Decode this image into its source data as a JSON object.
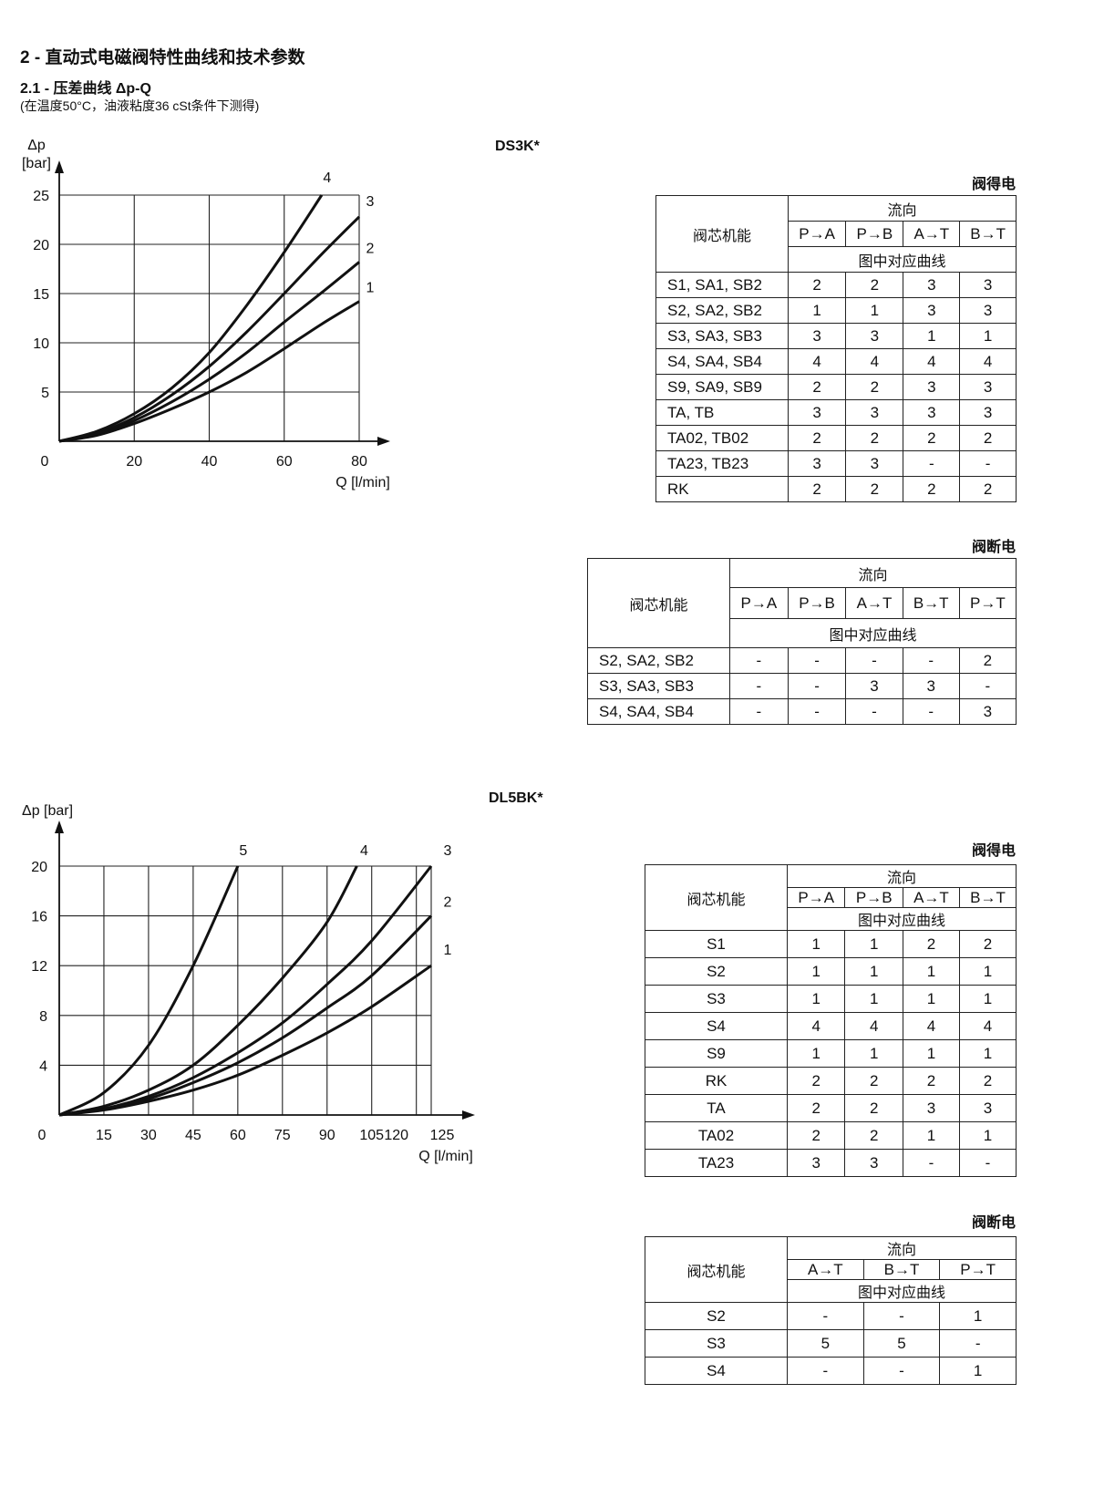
{
  "heading": {
    "section": "2 - 直动式电磁阀特性曲线和技术参数",
    "subsection": "2.1 - 压差曲线 Δp-Q",
    "conditions": "(在温度50°C，油液粘度36 cSt条件下测得)"
  },
  "ds3k": {
    "title": "DS3K*",
    "energized_label": "阀得电",
    "deenergized_label": "阀断电",
    "table_energized": {
      "spool_header": "阀芯机能",
      "flow_header": "流向",
      "curve_header": "图中对应曲线",
      "directions": [
        "P→A",
        "P→B",
        "A→T",
        "B→T"
      ],
      "rows": [
        {
          "spool": "S1, SA1, SB2",
          "values": [
            "2",
            "2",
            "3",
            "3"
          ]
        },
        {
          "spool": "S2, SA2, SB2",
          "values": [
            "1",
            "1",
            "3",
            "3"
          ]
        },
        {
          "spool": "S3, SA3, SB3",
          "values": [
            "3",
            "3",
            "1",
            "1"
          ]
        },
        {
          "spool": "S4, SA4, SB4",
          "values": [
            "4",
            "4",
            "4",
            "4"
          ]
        },
        {
          "spool": "S9, SA9, SB9",
          "values": [
            "2",
            "2",
            "3",
            "3"
          ]
        },
        {
          "spool": "TA, TB",
          "values": [
            "3",
            "3",
            "3",
            "3"
          ]
        },
        {
          "spool": "TA02, TB02",
          "values": [
            "2",
            "2",
            "2",
            "2"
          ]
        },
        {
          "spool": "TA23, TB23",
          "values": [
            "3",
            "3",
            "-",
            "-"
          ]
        },
        {
          "spool": "RK",
          "values": [
            "2",
            "2",
            "2",
            "2"
          ]
        }
      ]
    },
    "table_deenergized": {
      "spool_header": "阀芯机能",
      "flow_header": "流向",
      "curve_header": "图中对应曲线",
      "directions": [
        "P→A",
        "P→B",
        "A→T",
        "B→T",
        "P→T"
      ],
      "rows": [
        {
          "spool": "S2, SA2, SB2",
          "values": [
            "-",
            "-",
            "-",
            "-",
            "2"
          ]
        },
        {
          "spool": "S3, SA3, SB3",
          "values": [
            "-",
            "-",
            "3",
            "3",
            "-"
          ]
        },
        {
          "spool": "S4, SA4, SB4",
          "values": [
            "-",
            "-",
            "-",
            "-",
            "3"
          ]
        }
      ]
    }
  },
  "dl5bk": {
    "title": "DL5BK*",
    "energized_label": "阀得电",
    "deenergized_label": "阀断电",
    "table_energized": {
      "spool_header": "阀芯机能",
      "flow_header": "流向",
      "curve_header": "图中对应曲线",
      "directions": [
        "P→A",
        "P→B",
        "A→T",
        "B→T"
      ],
      "rows": [
        {
          "spool": "S1",
          "values": [
            "1",
            "1",
            "2",
            "2"
          ]
        },
        {
          "spool": "S2",
          "values": [
            "1",
            "1",
            "1",
            "1"
          ]
        },
        {
          "spool": "S3",
          "values": [
            "1",
            "1",
            "1",
            "1"
          ]
        },
        {
          "spool": "S4",
          "values": [
            "4",
            "4",
            "4",
            "4"
          ]
        },
        {
          "spool": "S9",
          "values": [
            "1",
            "1",
            "1",
            "1"
          ]
        },
        {
          "spool": "RK",
          "values": [
            "2",
            "2",
            "2",
            "2"
          ]
        },
        {
          "spool": "TA",
          "values": [
            "2",
            "2",
            "3",
            "3"
          ]
        },
        {
          "spool": "TA02",
          "values": [
            "2",
            "2",
            "1",
            "1"
          ]
        },
        {
          "spool": "TA23",
          "values": [
            "3",
            "3",
            "-",
            "-"
          ]
        }
      ]
    },
    "table_deenergized": {
      "spool_header": "阀芯机能",
      "flow_header": "流向",
      "curve_header": "图中对应曲线",
      "directions": [
        "A→T",
        "B→T",
        "P→T"
      ],
      "rows": [
        {
          "spool": "S2",
          "values": [
            "-",
            "-",
            "1"
          ]
        },
        {
          "spool": "S3",
          "values": [
            "5",
            "5",
            "-"
          ]
        },
        {
          "spool": "S4",
          "values": [
            "-",
            "-",
            "1"
          ]
        }
      ]
    }
  },
  "chart_data": [
    {
      "type": "line",
      "title": "DS3K*",
      "xlabel": "Q [l/min]",
      "ylabel": "Δp [bar]",
      "xlim": [
        0,
        80
      ],
      "ylim": [
        0,
        25
      ],
      "xticks": [
        "0",
        "20",
        "40",
        "60",
        "80"
      ],
      "yticks": [
        "5",
        "10",
        "15",
        "20",
        "25"
      ],
      "grid": true,
      "series": [
        {
          "name": "1",
          "x": [
            0,
            10,
            20,
            30,
            40,
            50,
            60,
            70,
            80
          ],
          "y": [
            0,
            0.6,
            1.8,
            3.3,
            5.0,
            7.0,
            9.4,
            11.9,
            14.2
          ]
        },
        {
          "name": "2",
          "x": [
            0,
            10,
            20,
            30,
            40,
            50,
            60,
            70,
            80
          ],
          "y": [
            0,
            0.7,
            2.1,
            4.0,
            6.3,
            9.0,
            12.1,
            15.1,
            18.2
          ]
        },
        {
          "name": "3",
          "x": [
            0,
            10,
            20,
            30,
            40,
            50,
            60,
            70,
            80
          ],
          "y": [
            0,
            0.8,
            2.4,
            4.7,
            7.6,
            11.1,
            15.0,
            19.0,
            22.8
          ]
        },
        {
          "name": "4",
          "x": [
            0,
            10,
            20,
            30,
            40,
            50,
            60,
            70
          ],
          "y": [
            0,
            1.0,
            2.8,
            5.4,
            9.0,
            13.8,
            19.2,
            25.0
          ]
        }
      ]
    },
    {
      "type": "line",
      "title": "DL5BK*",
      "xlabel": "Q [l/min]",
      "ylabel": "Δp [bar]",
      "xlim": [
        0,
        125
      ],
      "ylim": [
        0,
        20
      ],
      "xticks": [
        "0",
        "15",
        "30",
        "45",
        "60",
        "75",
        "90",
        "105",
        "120",
        "125"
      ],
      "yticks": [
        "4",
        "8",
        "12",
        "16",
        "20"
      ],
      "grid": true,
      "series": [
        {
          "name": "1",
          "x": [
            0,
            15,
            30,
            45,
            60,
            75,
            90,
            105,
            125
          ],
          "y": [
            0,
            0.4,
            1.1,
            2.0,
            3.2,
            4.8,
            6.6,
            8.7,
            12.0
          ]
        },
        {
          "name": "2",
          "x": [
            0,
            15,
            30,
            45,
            60,
            75,
            90,
            105,
            125
          ],
          "y": [
            0,
            0.5,
            1.3,
            2.6,
            4.2,
            6.2,
            8.6,
            11.2,
            16.0
          ]
        },
        {
          "name": "3",
          "x": [
            0,
            15,
            30,
            45,
            60,
            75,
            90,
            105,
            125
          ],
          "y": [
            0,
            0.5,
            1.5,
            3.0,
            5.0,
            7.4,
            10.5,
            14.0,
            20.0
          ]
        },
        {
          "name": "4",
          "x": [
            0,
            15,
            30,
            45,
            60,
            75,
            90,
            100
          ],
          "y": [
            0,
            0.7,
            2.0,
            4.0,
            7.2,
            11.0,
            15.5,
            20.0
          ]
        },
        {
          "name": "5",
          "x": [
            0,
            15,
            30,
            45,
            60
          ],
          "y": [
            0,
            1.8,
            5.6,
            12.0,
            20.0
          ]
        }
      ]
    }
  ]
}
